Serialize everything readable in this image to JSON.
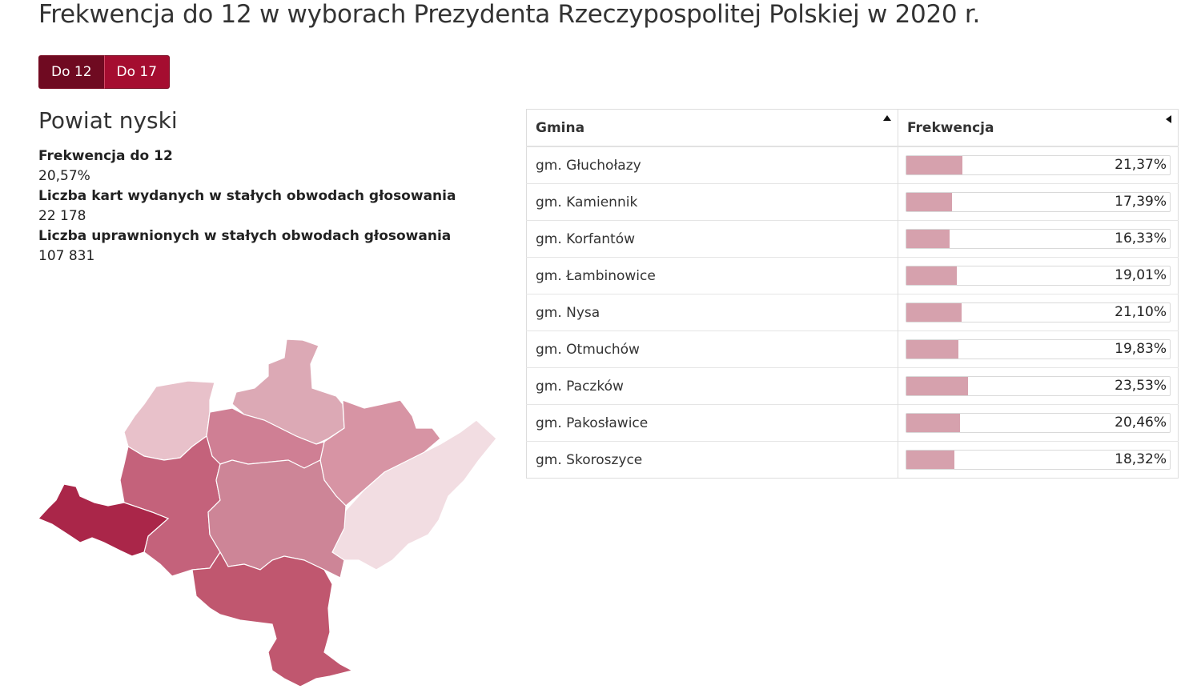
{
  "page": {
    "title": "Frekwencja do 12 w wyborach Prezydenta Rzeczypospolitej Polskiej w 2020 r."
  },
  "toggle": {
    "options": [
      "Do 12",
      "Do 17"
    ],
    "selected": "Do 12"
  },
  "region": {
    "name": "Powiat nyski",
    "stats": [
      {
        "label": "Frekwencja do 12",
        "value": "20,57%"
      },
      {
        "label": "Liczba kart wydanych w stałych obwodach głosowania",
        "value": "22 178"
      },
      {
        "label": "Liczba uprawnionych w stałych obwodach głosowania",
        "value": "107 831"
      }
    ]
  },
  "colors": {
    "accent": "#a50d30",
    "accent_dark": "#6f0a21",
    "bar_fill": "#d6a1ad"
  },
  "table": {
    "headers": {
      "gmina": "Gmina",
      "frekwencja": "Frekwencja"
    },
    "sort_icons": {
      "gmina": "sort-ascending-icon",
      "frekwencja": "sort-none-icon"
    },
    "rows": [
      {
        "gmina": "gm. Głuchołazy",
        "frekwencja": "21,37%",
        "value": 21.37
      },
      {
        "gmina": "gm. Kamiennik",
        "frekwencja": "17,39%",
        "value": 17.39
      },
      {
        "gmina": "gm. Korfantów",
        "frekwencja": "16,33%",
        "value": 16.33
      },
      {
        "gmina": "gm. Łambinowice",
        "frekwencja": "19,01%",
        "value": 19.01
      },
      {
        "gmina": "gm. Nysa",
        "frekwencja": "21,10%",
        "value": 21.1
      },
      {
        "gmina": "gm. Otmuchów",
        "frekwencja": "19,83%",
        "value": 19.83
      },
      {
        "gmina": "gm. Paczków",
        "frekwencja": "23,53%",
        "value": 23.53
      },
      {
        "gmina": "gm. Pakosławice",
        "frekwencja": "20,46%",
        "value": 20.46
      },
      {
        "gmina": "gm. Skoroszyce",
        "frekwencja": "18,32%",
        "value": 18.32
      }
    ]
  },
  "map": {
    "regions": [
      {
        "id": "kamiennik-region",
        "color": "#f2dde2"
      },
      {
        "id": "pakoslawice-region",
        "color": "#e8c1ca"
      },
      {
        "id": "skoroszyce-region",
        "color": "#dca9b5"
      },
      {
        "id": "lambinowice-region",
        "color": "#d794a4"
      },
      {
        "id": "korfantow-region",
        "color": "#cf7f94"
      },
      {
        "id": "nysa-region",
        "color": "#c4627b"
      },
      {
        "id": "otmuchow-region",
        "color": "#cd8597"
      },
      {
        "id": "glucholazy-region",
        "color": "#c0576f"
      },
      {
        "id": "paczkow-region",
        "color": "#aa2649"
      }
    ]
  }
}
